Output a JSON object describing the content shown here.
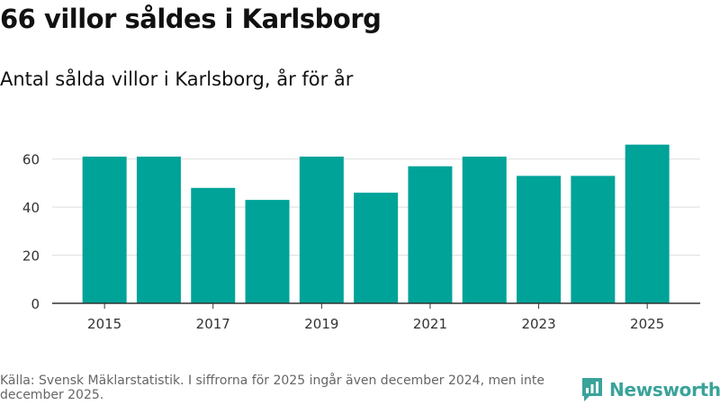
{
  "title": "66 villor såldes i Karlsborg",
  "subtitle": "Antal sålda villor i Karlsborg, år för år",
  "footer": "Källa: Svensk Mäklarstatistik. I siffrorna för 2025 ingår även december 2024, men inte december 2025.",
  "brand": {
    "name": "Newsworthy",
    "color": "#3aa39a"
  },
  "colors": {
    "bar": "#00a398",
    "grid": "#dddddd",
    "axis": "#333333",
    "tick_text": "#333333"
  },
  "chart_data": {
    "type": "bar",
    "title": "Antal sålda villor i Karlsborg, år för år",
    "xlabel": "",
    "ylabel": "",
    "categories": [
      "2015",
      "2016",
      "2017",
      "2018",
      "2019",
      "2020",
      "2021",
      "2022",
      "2023",
      "2024",
      "2025"
    ],
    "values": [
      61,
      61,
      48,
      43,
      61,
      46,
      57,
      61,
      53,
      53,
      66
    ],
    "x_tick_labels": [
      "2015",
      "2017",
      "2019",
      "2021",
      "2023",
      "2025"
    ],
    "y_ticks": [
      0,
      20,
      40,
      60
    ],
    "ylim": [
      0,
      70
    ],
    "grid": true,
    "legend": "none"
  }
}
